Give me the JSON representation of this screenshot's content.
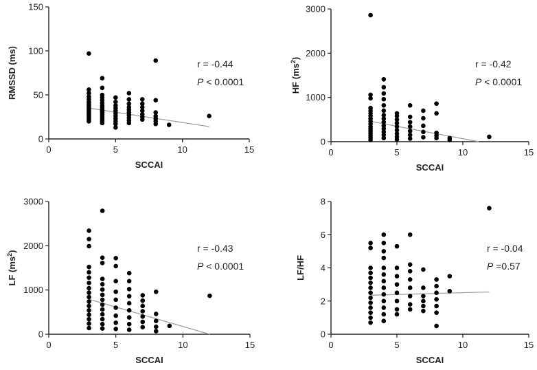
{
  "chart_data": [
    {
      "type": "scatter",
      "xlabel": "SCCAI",
      "ylabel_main": "RMSSD (ms)",
      "ylabel_sup": "",
      "ylabel_tail": "",
      "xlim": [
        0,
        15
      ],
      "ylim": [
        0,
        150
      ],
      "xticks": [
        0,
        5,
        10,
        15
      ],
      "yticks": [
        0,
        50,
        100,
        150
      ],
      "stat_r": "r = -0.44",
      "stat_p_label": "P",
      "stat_p_value": " < 0.0001",
      "trend": {
        "x": [
          3,
          12
        ],
        "y": [
          35,
          14
        ]
      },
      "points": [
        [
          3,
          97
        ],
        [
          3,
          56
        ],
        [
          3,
          52
        ],
        [
          3,
          48
        ],
        [
          3,
          45
        ],
        [
          3,
          42
        ],
        [
          3,
          40
        ],
        [
          3,
          38
        ],
        [
          3,
          36
        ],
        [
          3,
          34
        ],
        [
          3,
          32
        ],
        [
          3,
          30
        ],
        [
          3,
          28
        ],
        [
          3,
          26
        ],
        [
          3,
          24
        ],
        [
          3,
          22
        ],
        [
          3,
          20
        ],
        [
          4,
          69
        ],
        [
          4,
          58
        ],
        [
          4,
          50
        ],
        [
          4,
          47
        ],
        [
          4,
          44
        ],
        [
          4,
          41
        ],
        [
          4,
          38
        ],
        [
          4,
          36
        ],
        [
          4,
          34
        ],
        [
          4,
          32
        ],
        [
          4,
          30
        ],
        [
          4,
          28
        ],
        [
          4,
          26
        ],
        [
          4,
          24
        ],
        [
          4,
          22
        ],
        [
          4,
          20
        ],
        [
          4,
          18
        ],
        [
          5,
          47
        ],
        [
          5,
          42
        ],
        [
          5,
          38
        ],
        [
          5,
          35
        ],
        [
          5,
          32
        ],
        [
          5,
          29
        ],
        [
          5,
          26
        ],
        [
          5,
          23
        ],
        [
          5,
          20
        ],
        [
          5,
          17
        ],
        [
          5,
          13
        ],
        [
          6,
          52
        ],
        [
          6,
          45
        ],
        [
          6,
          40
        ],
        [
          6,
          36
        ],
        [
          6,
          33
        ],
        [
          6,
          30
        ],
        [
          6,
          27
        ],
        [
          6,
          24
        ],
        [
          6,
          21
        ],
        [
          6,
          18
        ],
        [
          7,
          45
        ],
        [
          7,
          40
        ],
        [
          7,
          36
        ],
        [
          7,
          32
        ],
        [
          7,
          28
        ],
        [
          7,
          25
        ],
        [
          7,
          22
        ],
        [
          8,
          89
        ],
        [
          8,
          44
        ],
        [
          8,
          30
        ],
        [
          8,
          26
        ],
        [
          8,
          23
        ],
        [
          8,
          20
        ],
        [
          8,
          17
        ],
        [
          9,
          16
        ],
        [
          12,
          26
        ]
      ]
    },
    {
      "type": "scatter",
      "xlabel": "SCCAI",
      "ylabel_main": "HF (ms",
      "ylabel_sup": "2",
      "ylabel_tail": ")",
      "xlim": [
        0,
        15
      ],
      "ylim": [
        0,
        3000
      ],
      "xticks": [
        0,
        5,
        10,
        15
      ],
      "yticks": [
        0,
        1000,
        2000,
        3000
      ],
      "stat_r": "r = -0.42",
      "stat_p_label": "P",
      "stat_p_value": " < 0.0001",
      "trend": {
        "x": [
          3,
          11.2
        ],
        "y": [
          460,
          0
        ]
      },
      "points": [
        [
          3,
          2860
        ],
        [
          3,
          1060
        ],
        [
          3,
          980
        ],
        [
          3,
          760
        ],
        [
          3,
          700
        ],
        [
          3,
          640
        ],
        [
          3,
          580
        ],
        [
          3,
          520
        ],
        [
          3,
          460
        ],
        [
          3,
          400
        ],
        [
          3,
          340
        ],
        [
          3,
          290
        ],
        [
          3,
          240
        ],
        [
          3,
          190
        ],
        [
          3,
          140
        ],
        [
          3,
          90
        ],
        [
          3,
          40
        ],
        [
          4,
          1410
        ],
        [
          4,
          1230
        ],
        [
          4,
          1090
        ],
        [
          4,
          960
        ],
        [
          4,
          820
        ],
        [
          4,
          700
        ],
        [
          4,
          600
        ],
        [
          4,
          520
        ],
        [
          4,
          440
        ],
        [
          4,
          360
        ],
        [
          4,
          290
        ],
        [
          4,
          220
        ],
        [
          4,
          150
        ],
        [
          4,
          80
        ],
        [
          5,
          640
        ],
        [
          5,
          580
        ],
        [
          5,
          500
        ],
        [
          5,
          420
        ],
        [
          5,
          340
        ],
        [
          5,
          260
        ],
        [
          5,
          180
        ],
        [
          5,
          110
        ],
        [
          5,
          50
        ],
        [
          6,
          820
        ],
        [
          6,
          560
        ],
        [
          6,
          440
        ],
        [
          6,
          340
        ],
        [
          6,
          240
        ],
        [
          6,
          150
        ],
        [
          6,
          70
        ],
        [
          7,
          700
        ],
        [
          7,
          530
        ],
        [
          7,
          360
        ],
        [
          7,
          220
        ],
        [
          7,
          100
        ],
        [
          8,
          860
        ],
        [
          8,
          640
        ],
        [
          8,
          200
        ],
        [
          8,
          140
        ],
        [
          8,
          80
        ],
        [
          9,
          80
        ],
        [
          9,
          40
        ],
        [
          12,
          110
        ]
      ]
    },
    {
      "type": "scatter",
      "xlabel": "SCCAI",
      "ylabel_main": "LF (ms",
      "ylabel_sup": "2",
      "ylabel_tail": ")",
      "xlim": [
        0,
        15
      ],
      "ylim": [
        0,
        3000
      ],
      "xticks": [
        0,
        5,
        10,
        15
      ],
      "yticks": [
        0,
        1000,
        2000,
        3000
      ],
      "stat_r": "r = -0.43",
      "stat_p_label": "P",
      "stat_p_value": " < 0.0001",
      "trend": {
        "x": [
          3,
          12
        ],
        "y": [
          790,
          0
        ]
      },
      "points": [
        [
          3,
          2340
        ],
        [
          3,
          2150
        ],
        [
          3,
          1990
        ],
        [
          3,
          1520
        ],
        [
          3,
          1400
        ],
        [
          3,
          1280
        ],
        [
          3,
          1160
        ],
        [
          3,
          1040
        ],
        [
          3,
          940
        ],
        [
          3,
          840
        ],
        [
          3,
          740
        ],
        [
          3,
          640
        ],
        [
          3,
          540
        ],
        [
          3,
          440
        ],
        [
          3,
          340
        ],
        [
          3,
          240
        ],
        [
          3,
          140
        ],
        [
          4,
          2790
        ],
        [
          4,
          1730
        ],
        [
          4,
          1610
        ],
        [
          4,
          1250
        ],
        [
          4,
          1130
        ],
        [
          4,
          1010
        ],
        [
          4,
          890
        ],
        [
          4,
          780
        ],
        [
          4,
          670
        ],
        [
          4,
          560
        ],
        [
          4,
          450
        ],
        [
          4,
          340
        ],
        [
          4,
          230
        ],
        [
          4,
          130
        ],
        [
          5,
          1720
        ],
        [
          5,
          1540
        ],
        [
          5,
          1200
        ],
        [
          5,
          960
        ],
        [
          5,
          780
        ],
        [
          5,
          600
        ],
        [
          5,
          420
        ],
        [
          5,
          260
        ],
        [
          5,
          120
        ],
        [
          6,
          1380
        ],
        [
          6,
          1200
        ],
        [
          6,
          1020
        ],
        [
          6,
          860
        ],
        [
          6,
          700
        ],
        [
          6,
          540
        ],
        [
          6,
          380
        ],
        [
          6,
          230
        ],
        [
          6,
          100
        ],
        [
          7,
          880
        ],
        [
          7,
          760
        ],
        [
          7,
          640
        ],
        [
          7,
          520
        ],
        [
          7,
          400
        ],
        [
          7,
          280
        ],
        [
          7,
          160
        ],
        [
          8,
          960
        ],
        [
          8,
          460
        ],
        [
          8,
          300
        ],
        [
          8,
          170
        ],
        [
          8,
          70
        ],
        [
          9,
          190
        ],
        [
          12,
          870
        ]
      ]
    },
    {
      "type": "scatter",
      "xlabel": "SCCAI",
      "ylabel_main": "LF/HF",
      "ylabel_sup": "",
      "ylabel_tail": "",
      "xlim": [
        0,
        15
      ],
      "ylim": [
        0,
        8
      ],
      "xticks": [
        0,
        5,
        10,
        15
      ],
      "yticks": [
        0,
        2,
        4,
        6,
        8
      ],
      "stat_r": "r = -0.04",
      "stat_p_label": "P",
      "stat_p_value": " =0.57",
      "trend": {
        "x": [
          3,
          12
        ],
        "y": [
          2.35,
          2.55
        ]
      },
      "points": [
        [
          3,
          5.5
        ],
        [
          3,
          5.2
        ],
        [
          3,
          4.0
        ],
        [
          3,
          3.7
        ],
        [
          3,
          3.4
        ],
        [
          3,
          3.1
        ],
        [
          3,
          2.8
        ],
        [
          3,
          2.5
        ],
        [
          3,
          2.2
        ],
        [
          3,
          1.9
        ],
        [
          3,
          1.6
        ],
        [
          3,
          1.3
        ],
        [
          3,
          1.0
        ],
        [
          3,
          0.7
        ],
        [
          4,
          6.0
        ],
        [
          4,
          5.5
        ],
        [
          4,
          5.0
        ],
        [
          4,
          4.6
        ],
        [
          4,
          4.0
        ],
        [
          4,
          3.6
        ],
        [
          4,
          3.2
        ],
        [
          4,
          2.8
        ],
        [
          4,
          2.4
        ],
        [
          4,
          2.0
        ],
        [
          4,
          1.6
        ],
        [
          4,
          1.2
        ],
        [
          4,
          0.8
        ],
        [
          5,
          5.3
        ],
        [
          5,
          4.0
        ],
        [
          5,
          3.5
        ],
        [
          5,
          3.0
        ],
        [
          5,
          2.5
        ],
        [
          5,
          2.0
        ],
        [
          5,
          1.5
        ],
        [
          5,
          1.2
        ],
        [
          6,
          6.0
        ],
        [
          6,
          4.2
        ],
        [
          6,
          3.8
        ],
        [
          6,
          3.3
        ],
        [
          6,
          2.8
        ],
        [
          6,
          2.3
        ],
        [
          6,
          1.8
        ],
        [
          6,
          1.5
        ],
        [
          7,
          3.9
        ],
        [
          7,
          2.8
        ],
        [
          7,
          2.3
        ],
        [
          7,
          2.0
        ],
        [
          7,
          1.7
        ],
        [
          7,
          1.4
        ],
        [
          8,
          3.3
        ],
        [
          8,
          2.9
        ],
        [
          8,
          2.5
        ],
        [
          8,
          2.1
        ],
        [
          8,
          1.7
        ],
        [
          8,
          1.3
        ],
        [
          8,
          0.5
        ],
        [
          9,
          3.5
        ],
        [
          9,
          2.6
        ],
        [
          12,
          7.6
        ]
      ]
    }
  ]
}
